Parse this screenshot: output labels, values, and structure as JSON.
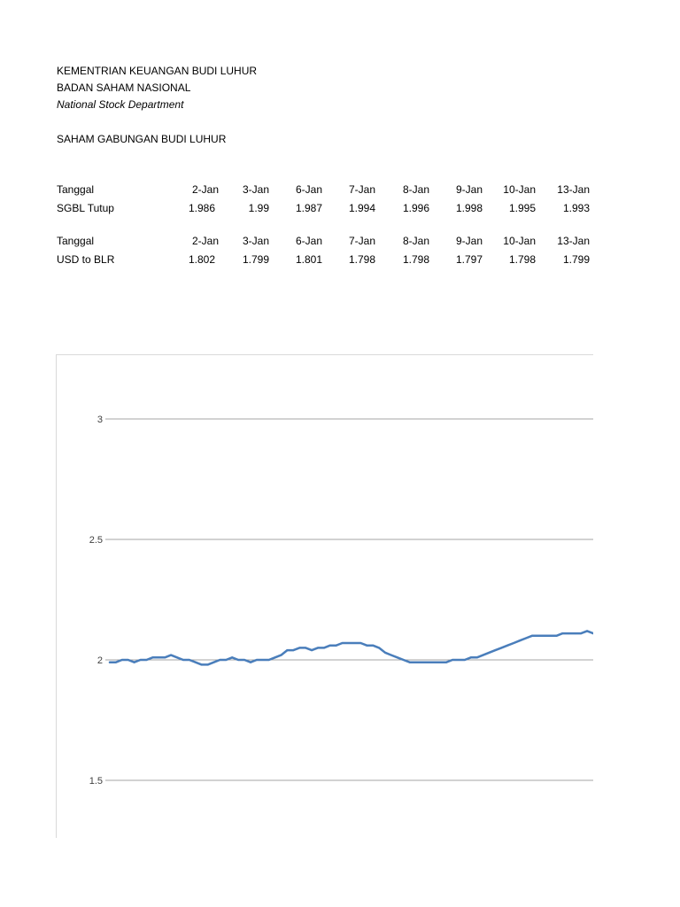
{
  "header": {
    "line1": "KEMENTRIAN KEUANGAN BUDI LUHUR",
    "line2": "BADAN SAHAM NASIONAL",
    "line3": "National Stock Department"
  },
  "section_title": "SAHAM GABUNGAN BUDI LUHUR",
  "table1": {
    "date_label": "Tanggal",
    "value_label": "SGBL Tutup",
    "dates": [
      "2-Jan",
      "3-Jan",
      "6-Jan",
      "7-Jan",
      "8-Jan",
      "9-Jan",
      "10-Jan",
      "13-Jan"
    ],
    "values": [
      "1.986",
      "1.99",
      "1.987",
      "1.994",
      "1.996",
      "1.998",
      "1.995",
      "1.993"
    ]
  },
  "table2": {
    "date_label": "Tanggal",
    "value_label": "USD to BLR",
    "dates": [
      "2-Jan",
      "3-Jan",
      "6-Jan",
      "7-Jan",
      "8-Jan",
      "9-Jan",
      "10-Jan",
      "13-Jan"
    ],
    "values": [
      "1.802",
      "1.799",
      "1.801",
      "1.798",
      "1.798",
      "1.797",
      "1.798",
      "1.799"
    ]
  },
  "chart_data": {
    "type": "line",
    "title": "",
    "xlabel": "",
    "ylabel": "",
    "ylim": [
      1.4,
      3.25
    ],
    "yticks": [
      1.5,
      2,
      2.5,
      3
    ],
    "ytick_labels": [
      "1.5",
      "2",
      "2.5",
      "3"
    ],
    "grid": true,
    "line_color": "#4a7ebb",
    "grid_color": "#a6a6a6",
    "series": [
      {
        "values": [
          1.99,
          1.99,
          2.0,
          2.0,
          1.99,
          2.0,
          2.0,
          2.01,
          2.01,
          2.01,
          2.02,
          2.01,
          2.0,
          2.0,
          1.99,
          1.98,
          1.98,
          1.99,
          2.0,
          2.0,
          2.01,
          2.0,
          2.0,
          1.99,
          2.0,
          2.0,
          2.0,
          2.01,
          2.02,
          2.04,
          2.04,
          2.05,
          2.05,
          2.04,
          2.05,
          2.05,
          2.06,
          2.06,
          2.07,
          2.07,
          2.07,
          2.07,
          2.06,
          2.06,
          2.05,
          2.03,
          2.02,
          2.01,
          2.0,
          1.99,
          1.99,
          1.99,
          1.99,
          1.99,
          1.99,
          1.99,
          2.0,
          2.0,
          2.0,
          2.01,
          2.01,
          2.02,
          2.03,
          2.04,
          2.05,
          2.06,
          2.07,
          2.08,
          2.09,
          2.1,
          2.1,
          2.1,
          2.1,
          2.1,
          2.11,
          2.11,
          2.11,
          2.11,
          2.12,
          2.11
        ]
      }
    ]
  }
}
